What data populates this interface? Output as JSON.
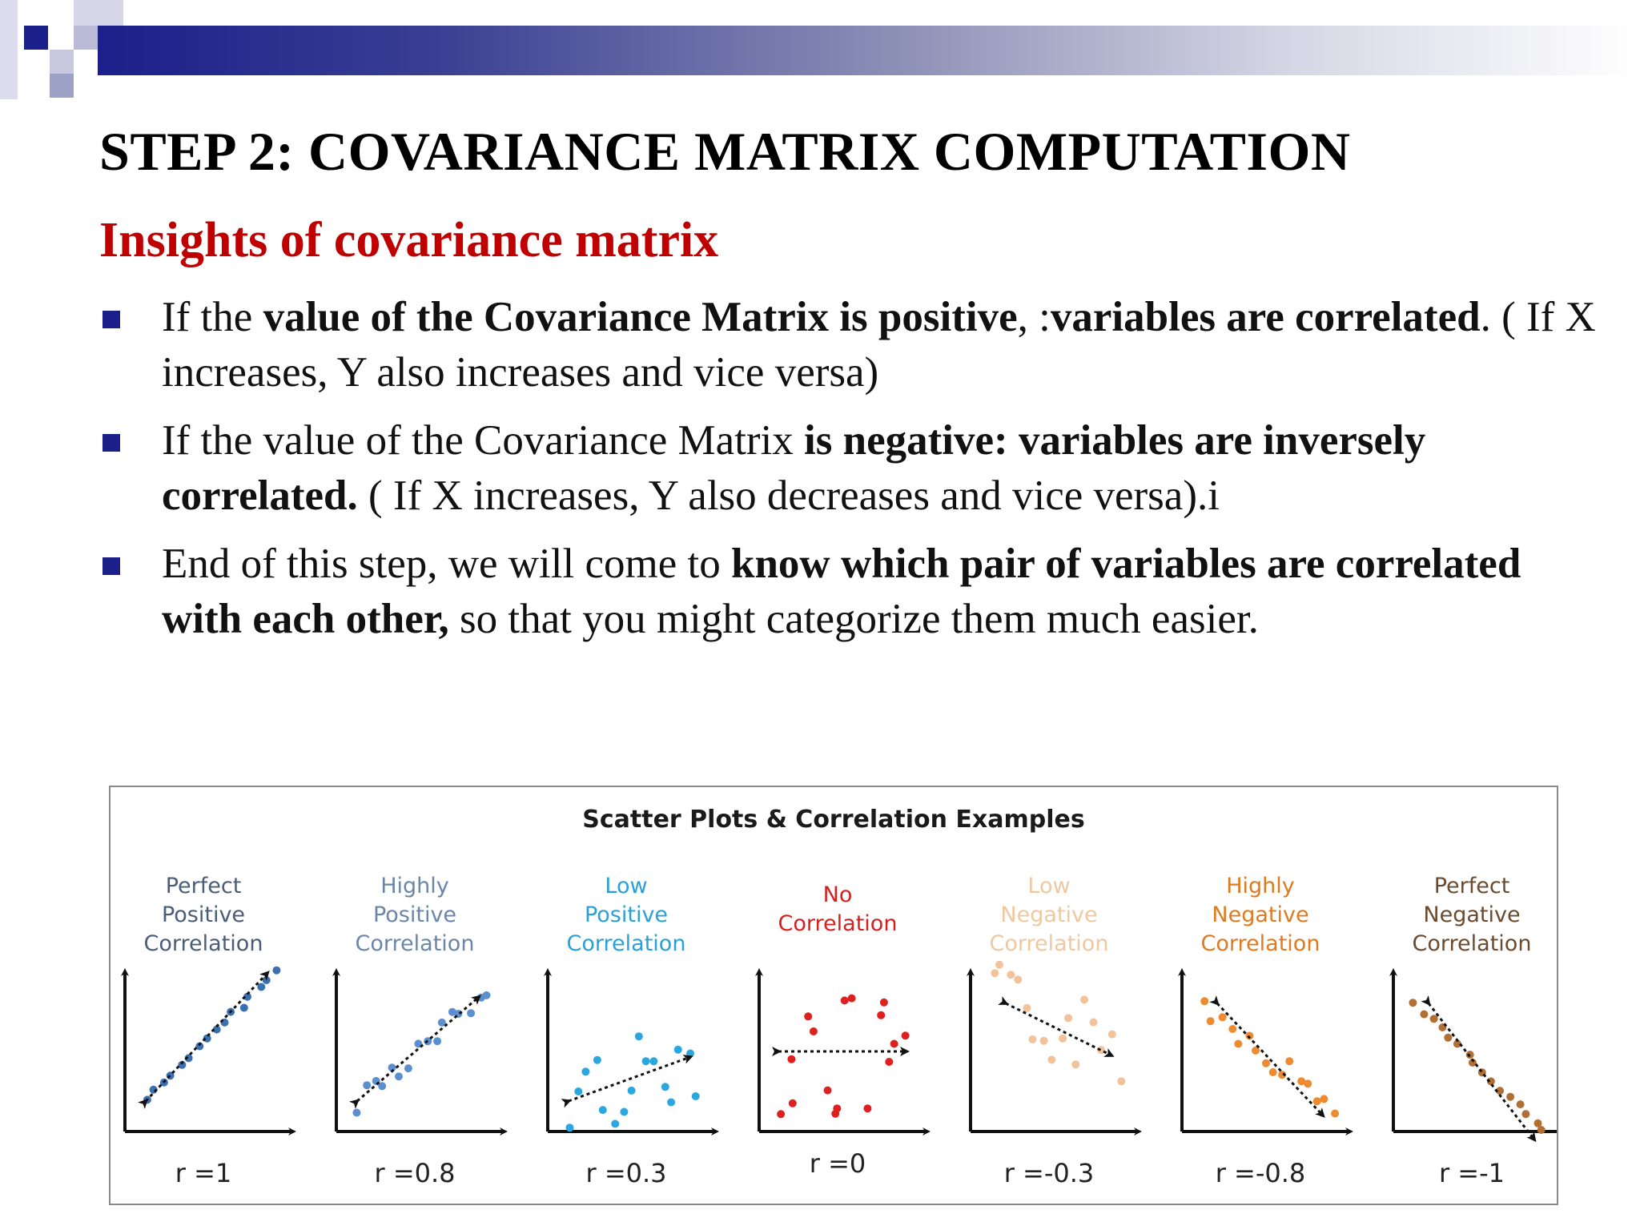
{
  "slide": {
    "title": "STEP 2: COVARIANCE MATRIX COMPUTATION",
    "subtitle": "Insights of covariance matrix",
    "bullets": [
      {
        "segments": [
          {
            "text": "If the ",
            "bold": false
          },
          {
            "text": "value of the Covariance Matrix is positive",
            "bold": true
          },
          {
            "text": ", :",
            "bold": false
          },
          {
            "text": "variables are correlated",
            "bold": true
          },
          {
            "text": ". ( If X increases, Y also increases and vice versa)",
            "bold": false
          }
        ]
      },
      {
        "segments": [
          {
            "text": "If the value of the Covariance Matrix ",
            "bold": false
          },
          {
            "text": "is negative: variables are inversely correlated.",
            "bold": true
          },
          {
            "text": " ( If X increases, Y also decreases and vice versa).i",
            "bold": false
          }
        ]
      },
      {
        "segments": [
          {
            "text": "End of this step, we will come to ",
            "bold": false
          },
          {
            "text": "know which pair of variables are correlated with each other,",
            "bold": true
          },
          {
            "text": " so that you might categorize them much easier.",
            "bold": false
          }
        ]
      }
    ],
    "colors": {
      "title": "#000000",
      "subtitle": "#c00000",
      "bullet_marker": "#1b1f8a",
      "header_bar_start": "#1b1f8a"
    },
    "bullet_icon": "square-bullet-icon"
  },
  "chart_data": {
    "type": "scatter",
    "title": "Scatter Plots & Correlation Examples",
    "panels": [
      {
        "label": [
          "Perfect",
          "Positive",
          "Correlation"
        ],
        "r_label": "r =1",
        "r": 1,
        "label_color": "#4a5d78",
        "point_color": "#3a6fb0",
        "arrow": "positive"
      },
      {
        "label": [
          "Highly",
          "Positive",
          "Correlation"
        ],
        "r_label": "r =0.8",
        "r": 0.8,
        "label_color": "#6a86a8",
        "point_color": "#5b8fd0",
        "arrow": "positive"
      },
      {
        "label": [
          "Low",
          "Positive",
          "Correlation"
        ],
        "r_label": "r =0.3",
        "r": 0.3,
        "label_color": "#2aa0d8",
        "point_color": "#2aa7e0",
        "arrow": "positive"
      },
      {
        "label": [
          "No",
          "Correlation"
        ],
        "r_label": "r =0",
        "r": 0,
        "label_color": "#d42020",
        "point_color": "#e02020",
        "arrow": "horizontal"
      },
      {
        "label": [
          "Low",
          "Negative",
          "Correlation"
        ],
        "r_label": "r =-0.3",
        "r": -0.3,
        "label_color": "#f0c8a0",
        "point_color": "#f2c39a",
        "arrow": "negative"
      },
      {
        "label": [
          "Highly",
          "Negative",
          "Correlation"
        ],
        "r_label": "r =-0.8",
        "r": -0.8,
        "label_color": "#e07a20",
        "point_color": "#ee8a30",
        "arrow": "negative"
      },
      {
        "label": [
          "Perfect",
          "Negative",
          "Correlation"
        ],
        "r_label": "r =-1",
        "r": -1,
        "label_color": "#6b4a2e",
        "point_color": "#b07035",
        "arrow": "negative"
      }
    ]
  }
}
